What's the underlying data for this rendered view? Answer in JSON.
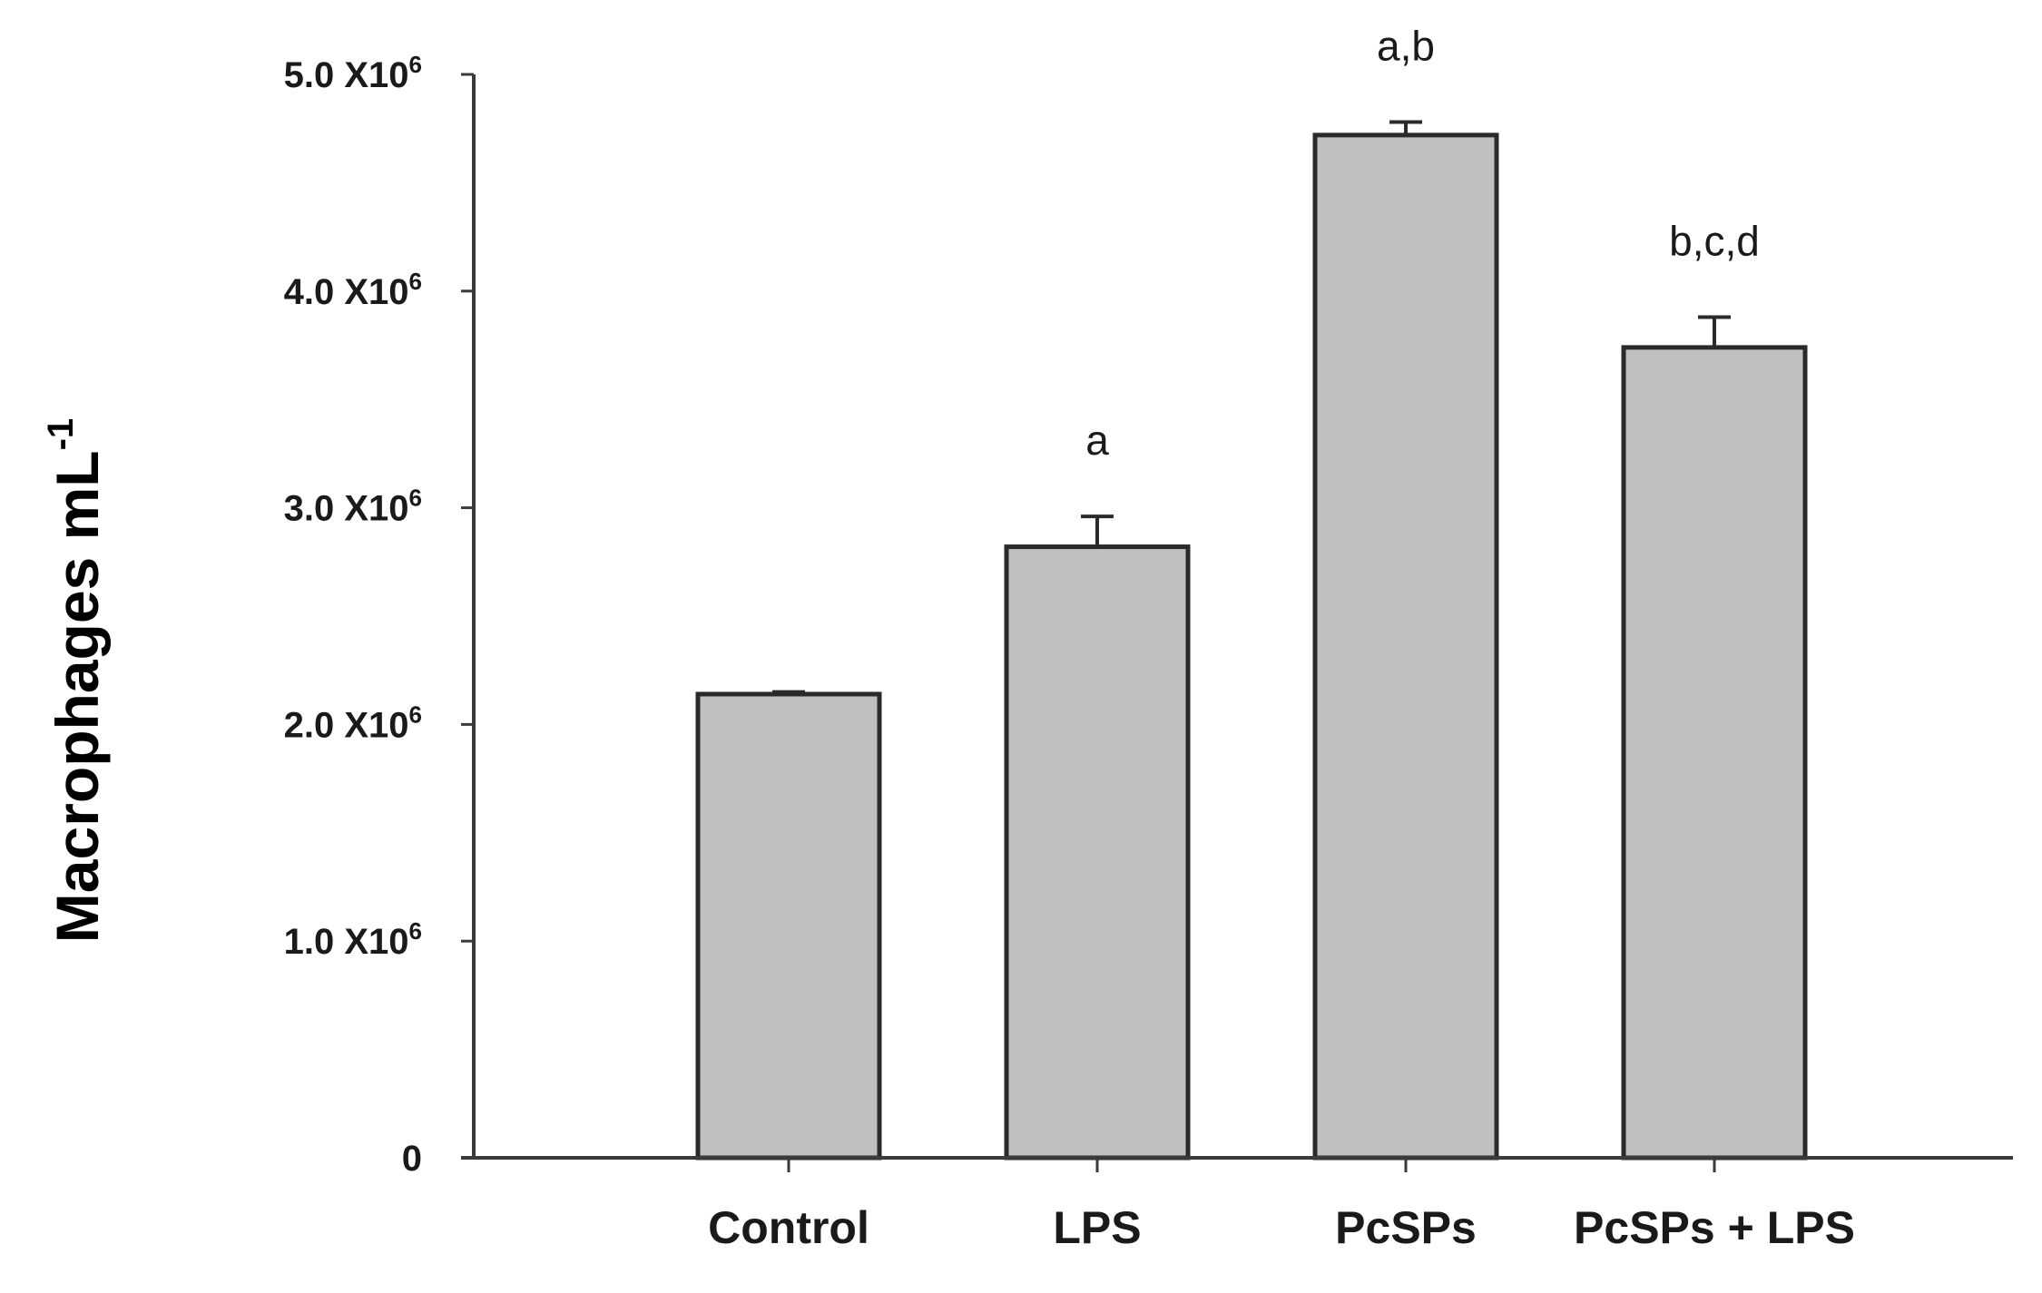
{
  "chart_data": {
    "type": "bar",
    "categories": [
      "Control",
      "LPS",
      "PcSPs",
      "PcSPs + LPS"
    ],
    "values": [
      2140000,
      2820000,
      4720000,
      3740000
    ],
    "errors": [
      10000,
      140000,
      60000,
      140000
    ],
    "annotations": [
      "",
      "a",
      "a,b",
      "b,c,d"
    ],
    "ylabel": "Macrophages mL",
    "ylabel_superscript": "-1",
    "ylim": [
      0,
      5000000
    ],
    "yticks": [
      {
        "value": 0,
        "base": "0",
        "exp": ""
      },
      {
        "value": 1000000,
        "base": "1.0 X10",
        "exp": "6"
      },
      {
        "value": 2000000,
        "base": "2.0 X10",
        "exp": "6"
      },
      {
        "value": 3000000,
        "base": "3.0 X10",
        "exp": "6"
      },
      {
        "value": 4000000,
        "base": "4.0 X10",
        "exp": "6"
      },
      {
        "value": 5000000,
        "base": "5.0 X10",
        "exp": "6"
      }
    ],
    "grid": false,
    "bar_color": "#c0c0c0",
    "bar_edge_color": "#2a2a2a",
    "axis_color": "#3a3a3a"
  }
}
